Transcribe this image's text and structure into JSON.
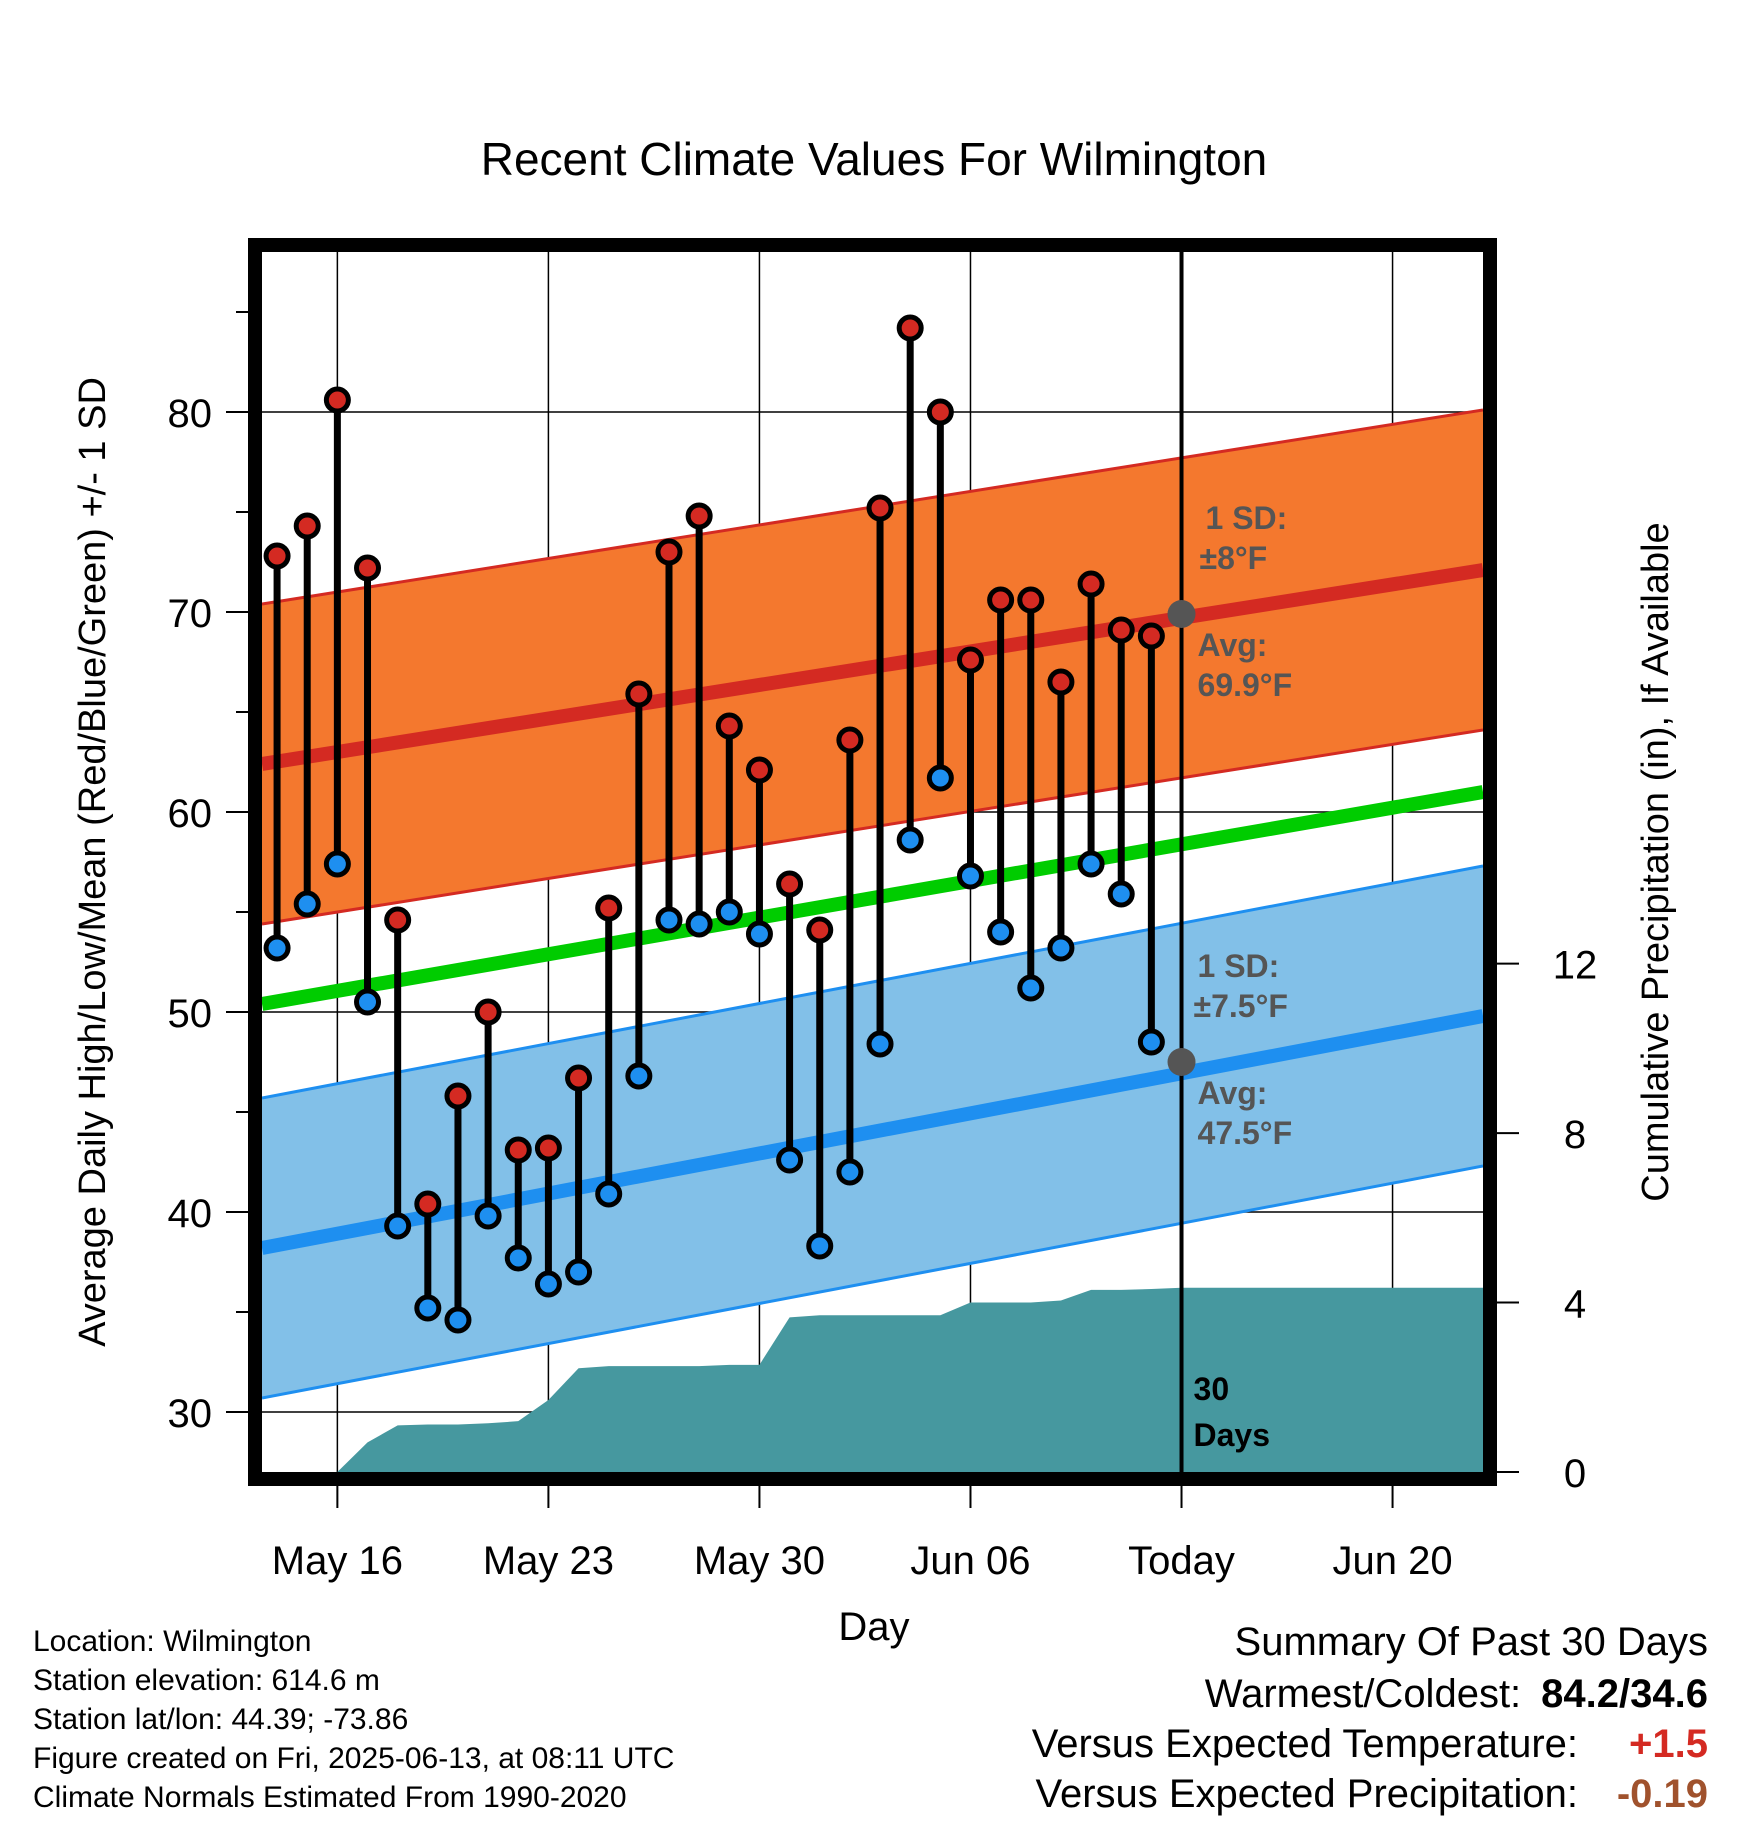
{
  "title": "Recent Climate Values For Wilmington",
  "xlabel": "Day",
  "ylabel_left": "Average Daily High/Low/Mean (Red/Blue/Green) +/- 1 SD",
  "ylabel_right": "Cumulative Precipitation (in), If Available",
  "chart_data": {
    "type": "line",
    "x_ticks": [
      {
        "day": 3,
        "label": "May 16"
      },
      {
        "day": 10,
        "label": "May 23"
      },
      {
        "day": 17,
        "label": "May 30"
      },
      {
        "day": 24,
        "label": "Jun 06"
      },
      {
        "day": 31,
        "label": "Today"
      },
      {
        "day": 38,
        "label": "Jun 20"
      }
    ],
    "xlim": [
      0.5,
      41
    ],
    "ylim_left": [
      27,
      88
    ],
    "y_ticks_left": [
      30,
      40,
      50,
      60,
      70,
      80
    ],
    "ylim_right": [
      0,
      28.8
    ],
    "y_ticks_right": [
      0,
      4,
      8,
      12
    ],
    "grid": true,
    "today_day": 31,
    "daily_highs": [
      72.8,
      74.3,
      80.6,
      72.2,
      54.6,
      40.4,
      45.8,
      50.0,
      43.1,
      43.2,
      46.7,
      55.2,
      65.9,
      73.0,
      74.8,
      64.3,
      62.1,
      56.4,
      54.1,
      63.6,
      75.2,
      84.2,
      80.0,
      67.6,
      70.6,
      70.6,
      66.5,
      71.4,
      69.1,
      68.8
    ],
    "daily_lows": [
      53.2,
      55.4,
      57.4,
      50.5,
      39.3,
      35.2,
      34.6,
      39.8,
      37.7,
      36.4,
      37.0,
      40.9,
      46.8,
      54.6,
      54.4,
      55.0,
      53.9,
      42.6,
      38.3,
      42.0,
      48.4,
      58.6,
      61.7,
      56.8,
      54.0,
      51.2,
      53.2,
      57.4,
      55.9,
      48.5
    ],
    "normal_high": {
      "start": 62.4,
      "end": 72.1
    },
    "normal_high_sd": 8.0,
    "normal_low": {
      "start": 38.2,
      "end": 49.8
    },
    "normal_low_sd": 7.5,
    "normal_mean": {
      "start": 50.4,
      "end": 61.0
    },
    "precip_x": [
      1,
      3,
      4,
      5,
      6,
      7,
      8,
      9,
      10,
      11,
      12,
      13,
      14,
      15,
      16,
      17,
      18,
      19,
      20,
      21,
      22,
      23,
      24,
      25,
      26,
      27,
      28,
      29,
      30,
      31,
      41
    ],
    "precip_cumulative": [
      0.0,
      0.0,
      0.7,
      1.1,
      1.12,
      1.12,
      1.15,
      1.2,
      1.7,
      2.45,
      2.5,
      2.5,
      2.5,
      2.5,
      2.53,
      2.53,
      3.65,
      3.7,
      3.7,
      3.7,
      3.7,
      3.7,
      4.0,
      4.0,
      4.0,
      4.05,
      4.3,
      4.3,
      4.32,
      4.35,
      4.35
    ],
    "annotations": {
      "high_sd_label": "1 SD:",
      "high_sd_value": "±8°F",
      "high_avg_label": "Avg:",
      "high_avg_value": "69.9°F",
      "today_high_avg": 69.9,
      "low_sd_label": "1 SD:",
      "low_sd_value": "±7.5°F",
      "low_avg_label": "Avg:",
      "low_avg_value": "47.5°F",
      "today_low_avg": 47.5,
      "days_label_1": "30",
      "days_label_2": "Days"
    },
    "colors": {
      "high_band": "#f4782e",
      "high_line": "#d42a22",
      "low_band": "#82c0e8",
      "low_line": "#1e8ff0",
      "mean_line": "#00cc00",
      "precip": "#46989f",
      "high_dot": "#d42a22",
      "low_dot": "#1e8ff0",
      "annotation": "#555555"
    }
  },
  "meta": {
    "location": "Location: Wilmington",
    "elevation": "Station elevation: 614.6 m",
    "latlon": "Station lat/lon: 44.39; -73.86",
    "created": "Figure created on Fri, 2025-06-13, at 08:11 UTC",
    "normals": "Climate Normals Estimated From 1990-2020"
  },
  "summary": {
    "heading": "Summary Of Past 30 Days",
    "warm_cold_label": "Warmest/Coldest:",
    "warm_cold_value": "84.2/34.6",
    "temp_label": "Versus Expected Temperature:",
    "temp_value": "+1.5",
    "temp_color": "#d42a22",
    "precip_label": "Versus Expected Precipitation:",
    "precip_value": "-0.19",
    "precip_color": "#a0522d"
  }
}
